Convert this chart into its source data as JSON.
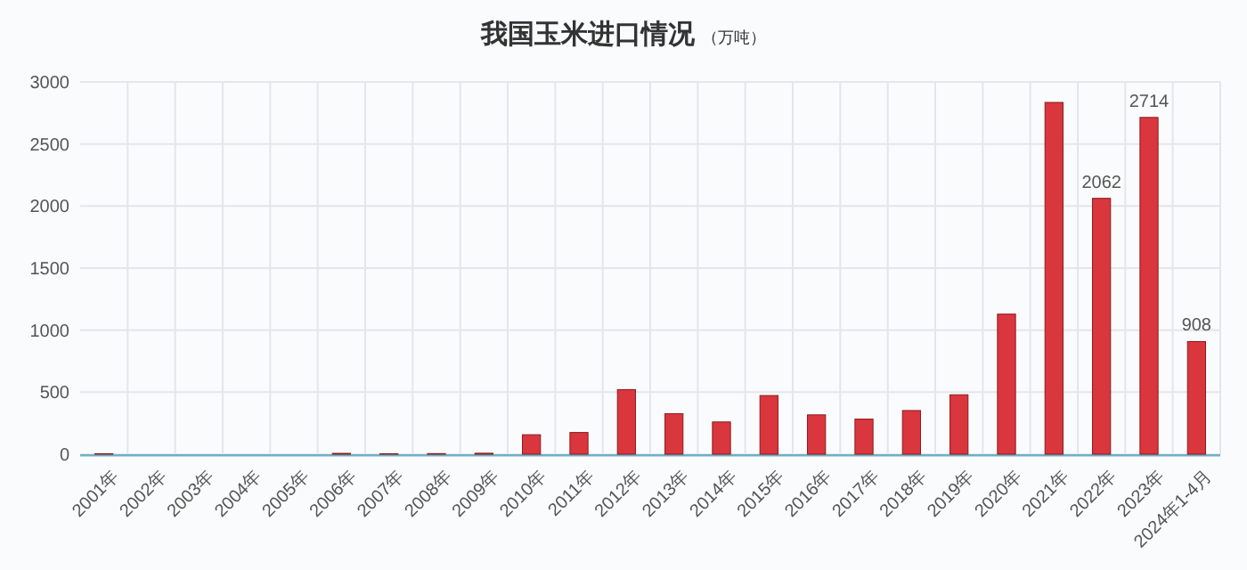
{
  "chart_data": {
    "type": "bar",
    "title": "我国玉米进口情况",
    "subtitle": "（万吨）",
    "categories": [
      "2001年",
      "2002年",
      "2003年",
      "2004年",
      "2005年",
      "2006年",
      "2007年",
      "2008年",
      "2009年",
      "2010年",
      "2011年",
      "2012年",
      "2013年",
      "2014年",
      "2015年",
      "2016年",
      "2017年",
      "2018年",
      "2019年",
      "2020年",
      "2021年",
      "2022年",
      "2023年",
      "2024年1-4月"
    ],
    "values": [
      4,
      0,
      0,
      0,
      0,
      7,
      4,
      5,
      8,
      157,
      175,
      521,
      327,
      260,
      473,
      317,
      283,
      352,
      479,
      1129,
      2835,
      2062,
      2714,
      908
    ],
    "value_labels": [
      null,
      null,
      null,
      null,
      null,
      null,
      null,
      null,
      null,
      null,
      null,
      null,
      null,
      null,
      null,
      null,
      null,
      null,
      null,
      null,
      null,
      "2062",
      "2714",
      "908"
    ],
    "color": "#d9363e",
    "ylim": [
      0,
      3000
    ],
    "yticks": [
      0,
      500,
      1000,
      1500,
      2000,
      2500,
      3000
    ],
    "grid": true
  }
}
